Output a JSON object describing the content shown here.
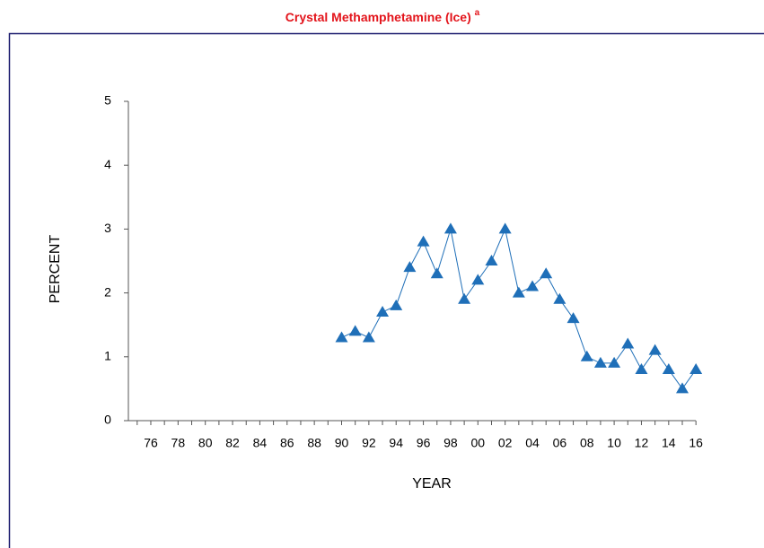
{
  "chart_data": {
    "type": "line",
    "title": "Crystal Methamphetamine (Ice)",
    "title_note": "a",
    "x_label": "YEAR",
    "y_label": "PERCENT",
    "categories": [
      null,
      "76",
      null,
      "78",
      null,
      "80",
      null,
      "82",
      null,
      "84",
      null,
      "86",
      null,
      "88",
      null,
      "90",
      null,
      "92",
      null,
      "94",
      null,
      "96",
      null,
      "98",
      null,
      "00",
      null,
      "02",
      null,
      "04",
      null,
      "06",
      null,
      "08",
      null,
      "10",
      null,
      "12",
      null,
      "14",
      null,
      "16"
    ],
    "series": [
      {
        "color": "#1f6fb8",
        "values": [
          null,
          null,
          null,
          null,
          null,
          null,
          null,
          null,
          null,
          null,
          null,
          null,
          null,
          null,
          null,
          1.3,
          1.4,
          1.3,
          1.7,
          1.8,
          2.4,
          2.8,
          2.3,
          3.0,
          1.9,
          2.2,
          2.5,
          3.0,
          2.0,
          2.1,
          2.3,
          1.9,
          1.6,
          1.0,
          0.9,
          0.9,
          1.2,
          0.8,
          1.1,
          0.8,
          0.5,
          0.8
        ]
      }
    ],
    "ylim": [
      0,
      5
    ],
    "yticks": [
      0,
      1,
      2,
      3,
      4,
      5
    ]
  }
}
